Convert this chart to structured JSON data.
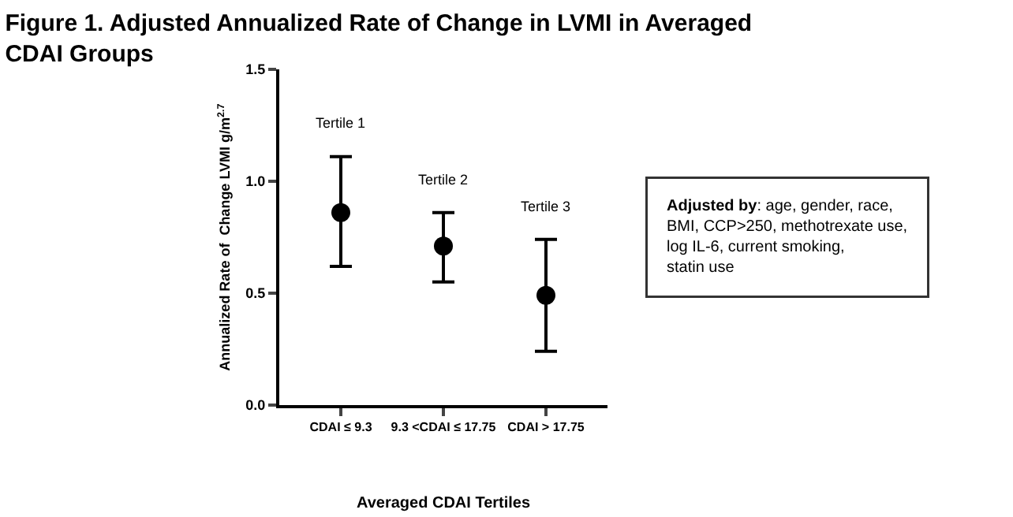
{
  "chart_data": {
    "type": "scatter",
    "title": "Figure 1. Adjusted Annualized Rate of Change in LVMI in Averaged CDAI Groups",
    "xlabel": "Averaged CDAI Tertiles",
    "ylabel": "Annualized Rate of  Change LVMI g/m$^{2.7}$",
    "categories": [
      "CDAI ≤ 9.3",
      "9.3 <CDAI ≤ 17.75",
      "CDAI > 17.75"
    ],
    "values": [
      0.86,
      0.71,
      0.49
    ],
    "errors": [
      [
        0.62,
        1.11
      ],
      [
        0.55,
        0.86
      ],
      [
        0.24,
        0.74
      ]
    ],
    "color": "#000000",
    "marker": "circle",
    "ylim": [
      0,
      1.5
    ],
    "yticks": [
      {
        "value": 0,
        "label": "0.0"
      },
      {
        "value": 0.5,
        "label": "0.5"
      },
      {
        "value": 1,
        "label": "1.0"
      },
      {
        "value": 1.5,
        "label": "1.5"
      }
    ],
    "annotations": [
      {
        "text": "Tertile 1",
        "x": "CDAI ≤ 9.3",
        "y": 1.11
      },
      {
        "text": "Tertile 2",
        "x": "9.3 <CDAI ≤ 17.75",
        "y": 0.86
      },
      {
        "text": "Tertile 3",
        "x": "CDAI > 17.75",
        "y": 0.74
      },
      "Adjusted by: age, gender, race, BMI, CCP>250, methotrexate use,  log IL-6, current smoking, statin use"
    ]
  }
}
